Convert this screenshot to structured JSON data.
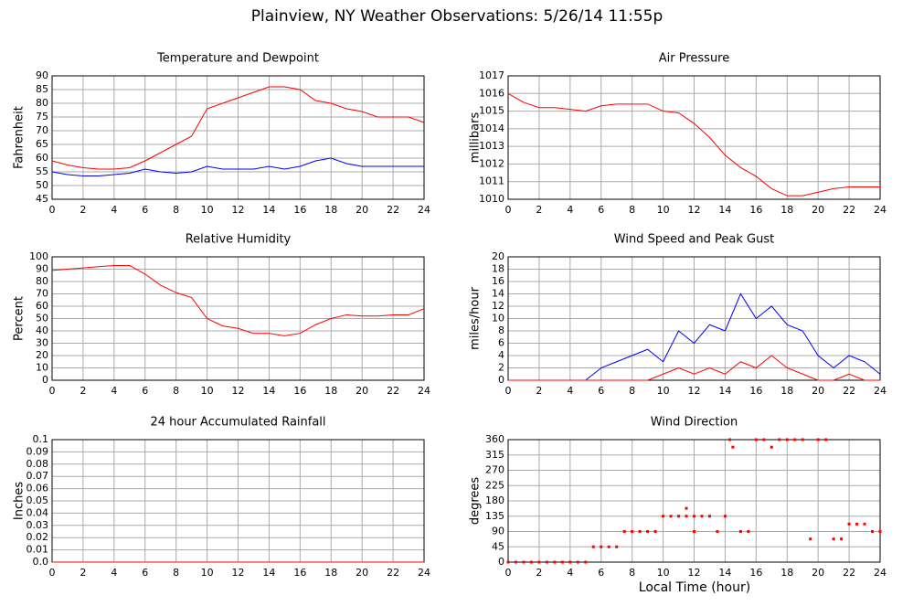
{
  "title": "Plainview, NY Weather Observations: 5/26/14 11:55p",
  "xlabel": "Local Time (hour)",
  "chart_data": [
    {
      "type": "line",
      "title": "Temperature and Dewpoint",
      "ylabel": "Fahrenheit",
      "xlim": [
        0,
        24
      ],
      "xticks": [
        0,
        2,
        4,
        6,
        8,
        10,
        12,
        14,
        16,
        18,
        20,
        22,
        24
      ],
      "ylim": [
        45,
        90
      ],
      "yticks": [
        45,
        50,
        55,
        60,
        65,
        70,
        75,
        80,
        85,
        90
      ],
      "grid": true,
      "x": [
        0,
        1,
        2,
        3,
        4,
        5,
        6,
        7,
        8,
        9,
        10,
        11,
        12,
        13,
        14,
        15,
        16,
        17,
        18,
        19,
        20,
        21,
        22,
        23,
        24
      ],
      "series": [
        {
          "color": "#ff0000",
          "values": [
            59,
            57.5,
            56.5,
            56,
            56,
            56.5,
            59,
            62,
            65,
            68,
            78,
            80,
            82,
            84,
            86,
            86,
            85,
            81,
            80,
            78,
            77,
            75,
            75,
            75,
            73
          ]
        },
        {
          "color": "#0000ff",
          "values": [
            55,
            54,
            53.5,
            53.5,
            54,
            54.5,
            56,
            55,
            54.5,
            55,
            57,
            56,
            56,
            56,
            57,
            56,
            57,
            59,
            60,
            58,
            57,
            57,
            57,
            57,
            57
          ]
        }
      ]
    },
    {
      "type": "line",
      "title": "Air Pressure",
      "ylabel": "millibars",
      "xlim": [
        0,
        24
      ],
      "xticks": [
        0,
        2,
        4,
        6,
        8,
        10,
        12,
        14,
        16,
        18,
        20,
        22,
        24
      ],
      "ylim": [
        1010,
        1017
      ],
      "yticks": [
        1010,
        1011,
        1012,
        1013,
        1014,
        1015,
        1016,
        1017
      ],
      "grid": true,
      "x": [
        0,
        1,
        2,
        3,
        4,
        5,
        6,
        7,
        8,
        9,
        10,
        11,
        12,
        13,
        14,
        15,
        16,
        17,
        18,
        19,
        20,
        21,
        22,
        23,
        24
      ],
      "series": [
        {
          "color": "#ff0000",
          "values": [
            1016,
            1015.5,
            1015.2,
            1015.2,
            1015.1,
            1015,
            1015.3,
            1015.4,
            1015.4,
            1015.4,
            1015,
            1014.9,
            1014.3,
            1013.5,
            1012.5,
            1011.8,
            1011.3,
            1010.6,
            1010.2,
            1010.2,
            1010.4,
            1010.6,
            1010.7,
            1010.7,
            1010.7
          ]
        }
      ]
    },
    {
      "type": "line",
      "title": "Relative Humidity",
      "ylabel": "Percent",
      "xlim": [
        0,
        24
      ],
      "xticks": [
        0,
        2,
        4,
        6,
        8,
        10,
        12,
        14,
        16,
        18,
        20,
        22,
        24
      ],
      "ylim": [
        0,
        100
      ],
      "yticks": [
        0,
        10,
        20,
        30,
        40,
        50,
        60,
        70,
        80,
        90,
        100
      ],
      "grid": true,
      "x": [
        0,
        1,
        2,
        3,
        4,
        5,
        6,
        7,
        8,
        9,
        10,
        11,
        12,
        13,
        14,
        15,
        16,
        17,
        18,
        19,
        20,
        21,
        22,
        23,
        24
      ],
      "series": [
        {
          "color": "#ff0000",
          "values": [
            89,
            90,
            91,
            92,
            93,
            93,
            86,
            77,
            71,
            67,
            50,
            44,
            42,
            38,
            38,
            36,
            38,
            45,
            50,
            53,
            52,
            52,
            53,
            53,
            58
          ]
        }
      ]
    },
    {
      "type": "line",
      "title": "Wind Speed and Peak Gust",
      "ylabel": "miles/hour",
      "xlim": [
        0,
        24
      ],
      "xticks": [
        0,
        2,
        4,
        6,
        8,
        10,
        12,
        14,
        16,
        18,
        20,
        22,
        24
      ],
      "ylim": [
        0,
        20
      ],
      "yticks": [
        0,
        2,
        4,
        6,
        8,
        10,
        12,
        14,
        16,
        18,
        20
      ],
      "grid": true,
      "x": [
        0,
        1,
        2,
        3,
        4,
        5,
        6,
        7,
        8,
        9,
        10,
        11,
        12,
        13,
        14,
        15,
        16,
        17,
        18,
        19,
        20,
        21,
        22,
        23,
        24
      ],
      "series": [
        {
          "color": "#0000ff",
          "values": [
            0,
            0,
            0,
            0,
            0,
            0,
            2,
            3,
            4,
            5,
            3,
            8,
            6,
            9,
            8,
            14,
            10,
            12,
            9,
            8,
            4,
            2,
            4,
            3,
            1
          ]
        },
        {
          "color": "#ff0000",
          "values": [
            0,
            0,
            0,
            0,
            0,
            0,
            0,
            0,
            0,
            0,
            1,
            2,
            1,
            2,
            1,
            3,
            2,
            4,
            2,
            1,
            0,
            0,
            1,
            0,
            0
          ]
        }
      ]
    },
    {
      "type": "line",
      "title": "24 hour Accumulated Rainfall",
      "ylabel": "Inches",
      "xlim": [
        0,
        24
      ],
      "xticks": [
        0,
        2,
        4,
        6,
        8,
        10,
        12,
        14,
        16,
        18,
        20,
        22,
        24
      ],
      "ylim": [
        0,
        0.1
      ],
      "yticks": [
        {
          "value": 0,
          "label": "0.0"
        },
        0.01,
        0.02,
        0.03,
        0.04,
        0.05,
        0.06,
        0.07,
        0.08,
        0.09,
        0.1
      ],
      "grid": true,
      "x": [
        0,
        24
      ],
      "series": [
        {
          "color": "#ff0000",
          "values": [
            0,
            0
          ]
        }
      ]
    },
    {
      "type": "scatter",
      "title": "Wind Direction",
      "ylabel": "degrees",
      "xlim": [
        0,
        24
      ],
      "xticks": [
        0,
        2,
        4,
        6,
        8,
        10,
        12,
        14,
        16,
        18,
        20,
        22,
        24
      ],
      "ylim": [
        0,
        360
      ],
      "yticks": [
        0,
        45,
        90,
        135,
        180,
        225,
        270,
        315,
        360
      ],
      "grid": true,
      "color": "#ff0000",
      "x": [
        0,
        0.5,
        1,
        1.5,
        2,
        2.5,
        3,
        3.5,
        4,
        4.5,
        5,
        5.5,
        6,
        6.5,
        7,
        7.5,
        8,
        8.5,
        9,
        9.5,
        10,
        10.5,
        11,
        11.5,
        11.5,
        12,
        12,
        12.5,
        13,
        13.5,
        14,
        14.3,
        14.5,
        15,
        15.5,
        16,
        16.5,
        17,
        17.5,
        18,
        18.5,
        19,
        19.5,
        20,
        20.5,
        21,
        21.5,
        22,
        22.5,
        23,
        23.5,
        24
      ],
      "values": [
        0,
        0,
        0,
        0,
        0,
        0,
        0,
        0,
        0,
        0,
        0,
        45,
        45,
        45,
        45,
        90,
        90,
        90,
        90,
        90,
        135,
        135,
        135,
        135,
        158,
        135,
        90,
        135,
        135,
        90,
        135,
        360,
        338,
        90,
        90,
        360,
        360,
        338,
        360,
        360,
        360,
        360,
        68,
        360,
        360,
        68,
        68,
        112,
        112,
        112,
        90,
        90
      ]
    }
  ]
}
